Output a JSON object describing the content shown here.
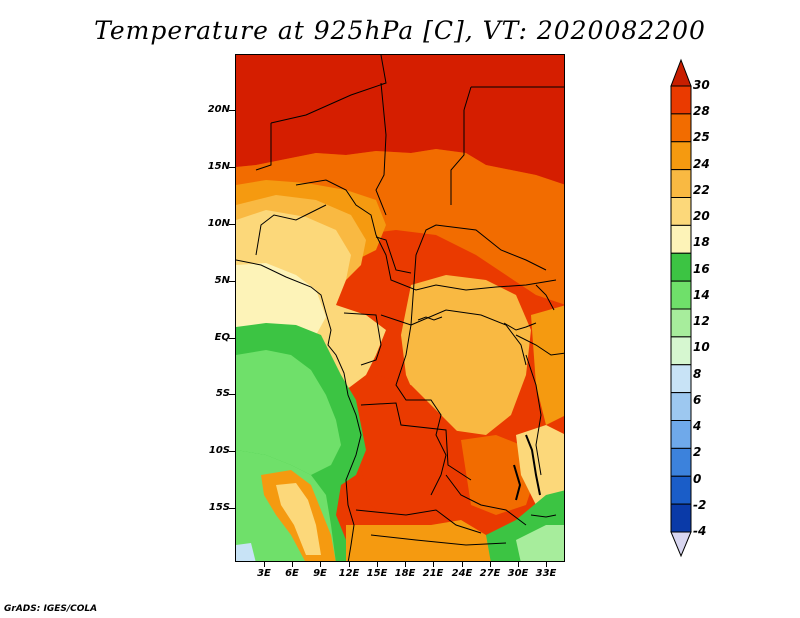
{
  "title": "Temperature at 925hPa [C], VT: 2020082200",
  "credit": "GrADS: IGES/COLA",
  "map": {
    "lat_labels": [
      "20N",
      "15N",
      "10N",
      "5N",
      "EQ",
      "5S",
      "10S",
      "15S"
    ],
    "lon_labels": [
      "3E",
      "6E",
      "9E",
      "12E",
      "15E",
      "18E",
      "21E",
      "24E",
      "27E",
      "30E",
      "33E"
    ],
    "regions": {
      "north_band": "30",
      "gulf_of_guinea_coast": "20",
      "congo_basin": "22",
      "atlantic_ocean": "14",
      "angola_south": "25"
    }
  },
  "colorbar": {
    "labels": [
      "30",
      "28",
      "25",
      "24",
      "22",
      "20",
      "18",
      "16",
      "14",
      "12",
      "10",
      "8",
      "6",
      "4",
      "2",
      "0",
      "-2",
      "-4"
    ],
    "colors": [
      "#d51e00",
      "#ea3a00",
      "#f26c00",
      "#f59a10",
      "#f9b942",
      "#fcd87a",
      "#fdf3b8",
      "#3cc443",
      "#6fe06a",
      "#a7ed9c",
      "#d6f7d0",
      "#c8e3f6",
      "#9dc8f0",
      "#6fa9ea",
      "#3c82dc",
      "#1a5dc8",
      "#0a3aa8",
      "#1a1876"
    ],
    "top_arrow_color": "#c81e00",
    "bottom_arrow_color": "#d8d6f0"
  }
}
